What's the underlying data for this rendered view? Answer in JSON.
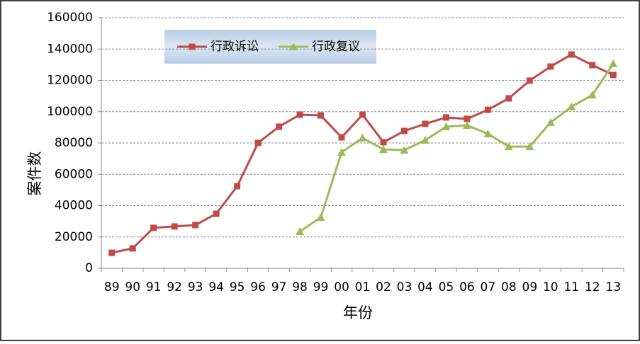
{
  "chart_data": {
    "type": "line",
    "y_label": "案件数",
    "x_label": "年份",
    "categories": [
      "89",
      "90",
      "91",
      "92",
      "93",
      "94",
      "95",
      "96",
      "97",
      "98",
      "99",
      "00",
      "01",
      "02",
      "03",
      "04",
      "05",
      "06",
      "07",
      "08",
      "09",
      "10",
      "11",
      "12",
      "13"
    ],
    "series": [
      {
        "name": "行政诉讼",
        "color": "#be4b48",
        "marker": "square",
        "values": [
          9900,
          12700,
          25800,
          26700,
          27600,
          34800,
          52400,
          80000,
          90400,
          98100,
          97600,
          83600,
          98100,
          80500,
          87700,
          92200,
          96300,
          95400,
          101200,
          108500,
          119800,
          128800,
          136500,
          129700,
          123400
        ]
      },
      {
        "name": "行政复议",
        "color": "#9bbb59",
        "marker": "triangle",
        "values": [
          null,
          null,
          null,
          null,
          null,
          null,
          null,
          null,
          null,
          23500,
          32500,
          74100,
          83200,
          75900,
          75500,
          81800,
          90400,
          91300,
          85900,
          77700,
          77700,
          93100,
          103100,
          110700,
          130600
        ]
      }
    ],
    "ylim": [
      0,
      160000
    ],
    "yticks": [
      0,
      20000,
      40000,
      60000,
      80000,
      100000,
      120000,
      140000,
      160000
    ],
    "grid": true
  }
}
